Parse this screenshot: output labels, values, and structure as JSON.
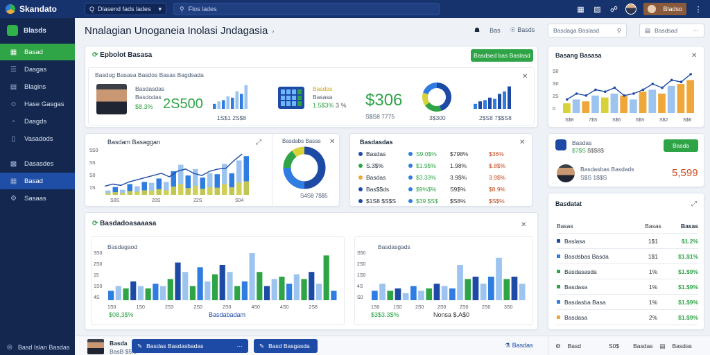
{
  "app": {
    "name": "Skandato"
  },
  "topbar": {
    "selector": "Dlasend fads lades",
    "search_placeholder": "Flos lades",
    "user_label": "Bladso"
  },
  "sidebar": {
    "header": "Blasds",
    "items": [
      {
        "label": "Basad",
        "icon": "grid-icon"
      },
      {
        "label": "Dasgas",
        "icon": "list-icon"
      },
      {
        "label": "Blagins",
        "icon": "file-icon"
      },
      {
        "label": "Hase Gasgas",
        "icon": "users-icon"
      },
      {
        "label": "Dasgds",
        "icon": "document-icon"
      },
      {
        "label": "Vasadods",
        "icon": "folder-icon"
      },
      {
        "label": "Dasasdes",
        "icon": "chart-icon"
      },
      {
        "label": "Basad",
        "icon": "table-icon"
      },
      {
        "label": "Sasaas",
        "icon": "settings-icon"
      }
    ],
    "footer": "Basd Islan Basdas"
  },
  "header": {
    "title": "Nnalagian Unoganeia Inolasi Jndagasia",
    "action1": "Bas",
    "action2": "Basds",
    "input_placeholder": "Basdaga Baslasd",
    "dropdown": "Basdsad"
  },
  "overview": {
    "title": "Epbolot Basasa",
    "button": "Basdsed bas Baslasd",
    "subtitle": "Basdug Basasa Basdos Basas Bagdsada",
    "profile_name": "Basdasdas",
    "profile_sub": "Basdodas",
    "profile_pct": "$8.3%",
    "profile_value": "2S500",
    "stat1_caption": "1S$1 2S$8",
    "calc_label1": "Basdas",
    "calc_label2": "Basasa",
    "calc_pct": "1.5$3%",
    "calc_pct2": "3 %",
    "big_value": "$306",
    "big_caption": "S$S8 7775",
    "donut_caption": "3$300",
    "bars_caption": "2$S8 7$$S8"
  },
  "colors": {
    "green": "#2ea447",
    "blue": "#2f7de1",
    "darkblue": "#1d4aa5",
    "orange": "#f0a73a",
    "yellow": "#d8d23a",
    "lightblue": "#9cc4ef",
    "navy": "#16336e"
  },
  "combo_chart": {
    "title": "Basdam Basaggan",
    "y_ticks": [
      "5S0",
      "5S",
      "S0",
      "1S"
    ],
    "x_ticks": [
      "S0S",
      "20S",
      "22S",
      "S04"
    ]
  },
  "donut_card": {
    "title": "Basdabs Basas",
    "caption": "S4S8 7$$5"
  },
  "legend_card": {
    "title": "Basdasdas",
    "rows": [
      {
        "a": "Basdas",
        "b": "S9.0$%",
        "c": "$798%",
        "d": "$36%"
      },
      {
        "a": "S.3$%",
        "b": "$1.9$%",
        "c": "1.98%",
        "d": "$.8$%"
      },
      {
        "a": "Basdas",
        "b": "$3.33%",
        "c": "3.9$%",
        "d": "3.9$%"
      },
      {
        "a": "Bas$$ds",
        "b": "$9%$%",
        "c": "S9$%",
        "d": "$8.9%"
      },
      {
        "a": "$1S8 $S$S",
        "b": "$39 $S$",
        "c": "$S8%",
        "d": "$S$%"
      }
    ]
  },
  "bottom_card": {
    "title": "Basdadoasaaasa",
    "chart1_title": "Basdagaod",
    "chart1_y": [
      "3S0",
      "2S0",
      "15",
      "1S0",
      "4S"
    ],
    "chart1_x": [
      "1S0",
      "1S0",
      "2S3",
      "2S0",
      "2S0",
      "4S0",
      "4S0",
      "2S8"
    ],
    "chart1_pct": "$08,3$%",
    "chart1_label": "Basdabadam",
    "chart2_title": "Basdasgads",
    "chart2_y": [
      "S50",
      "2S0",
      "1S0",
      "4S",
      "S0"
    ],
    "chart2_x": [
      "1S0",
      "1S0",
      "2S0",
      "2S0",
      "2S0",
      "2S0",
      "3S0"
    ],
    "chart2_pct": "$3$3.3$%",
    "chart2_label": "Nonsa $.A$0"
  },
  "right_chart": {
    "title": "Basang Basasa",
    "y_ticks": [
      "S0",
      "S0",
      "2S",
      "0"
    ],
    "x_ticks": [
      "S$8",
      "7$S",
      "S$6",
      "6$S",
      "S$2",
      "S$6"
    ]
  },
  "right_status": {
    "label": "Basdas",
    "pct": "$7$S",
    "value_small": "$$$8$",
    "button": "Basda",
    "name": "Basdasbas Basdads",
    "sub": "S$S 1$$S",
    "value": "5,599"
  },
  "right_list": {
    "title": "Basdatat",
    "headers": [
      "Basas",
      "Basas",
      "Basas"
    ],
    "rows": [
      {
        "name": "Baslasa",
        "qty": "1$1",
        "pct": "$1.2%",
        "color": "#1d4aa5"
      },
      {
        "name": "Basdsbas Basda",
        "qty": "1$1",
        "pct": "$1.$1%",
        "color": "#2f7de1"
      },
      {
        "name": "Basdasasda",
        "qty": "1%",
        "pct": "$1.$9%",
        "color": "#2ea447"
      },
      {
        "name": "Basdasa",
        "qty": "1%",
        "pct": "$1.$9%",
        "color": "#2ea447"
      },
      {
        "name": "Basdasba Basa",
        "qty": "1%",
        "pct": "$1.$9%",
        "color": "#2f7de1"
      },
      {
        "name": "Basdasa",
        "qty": "2%",
        "pct": "$1.$9%",
        "color": "#f0a73a"
      }
    ]
  },
  "bottombar": {
    "avatar_name": "Basda",
    "avatar_sub": "BasB $5.5",
    "button1": "Basdas Basdasbadas",
    "button2": "Basd Basgasda",
    "link": "Basdas",
    "r1": "Basd",
    "r2": "S0$",
    "r3": "Basdas",
    "r4": "Basdas"
  }
}
